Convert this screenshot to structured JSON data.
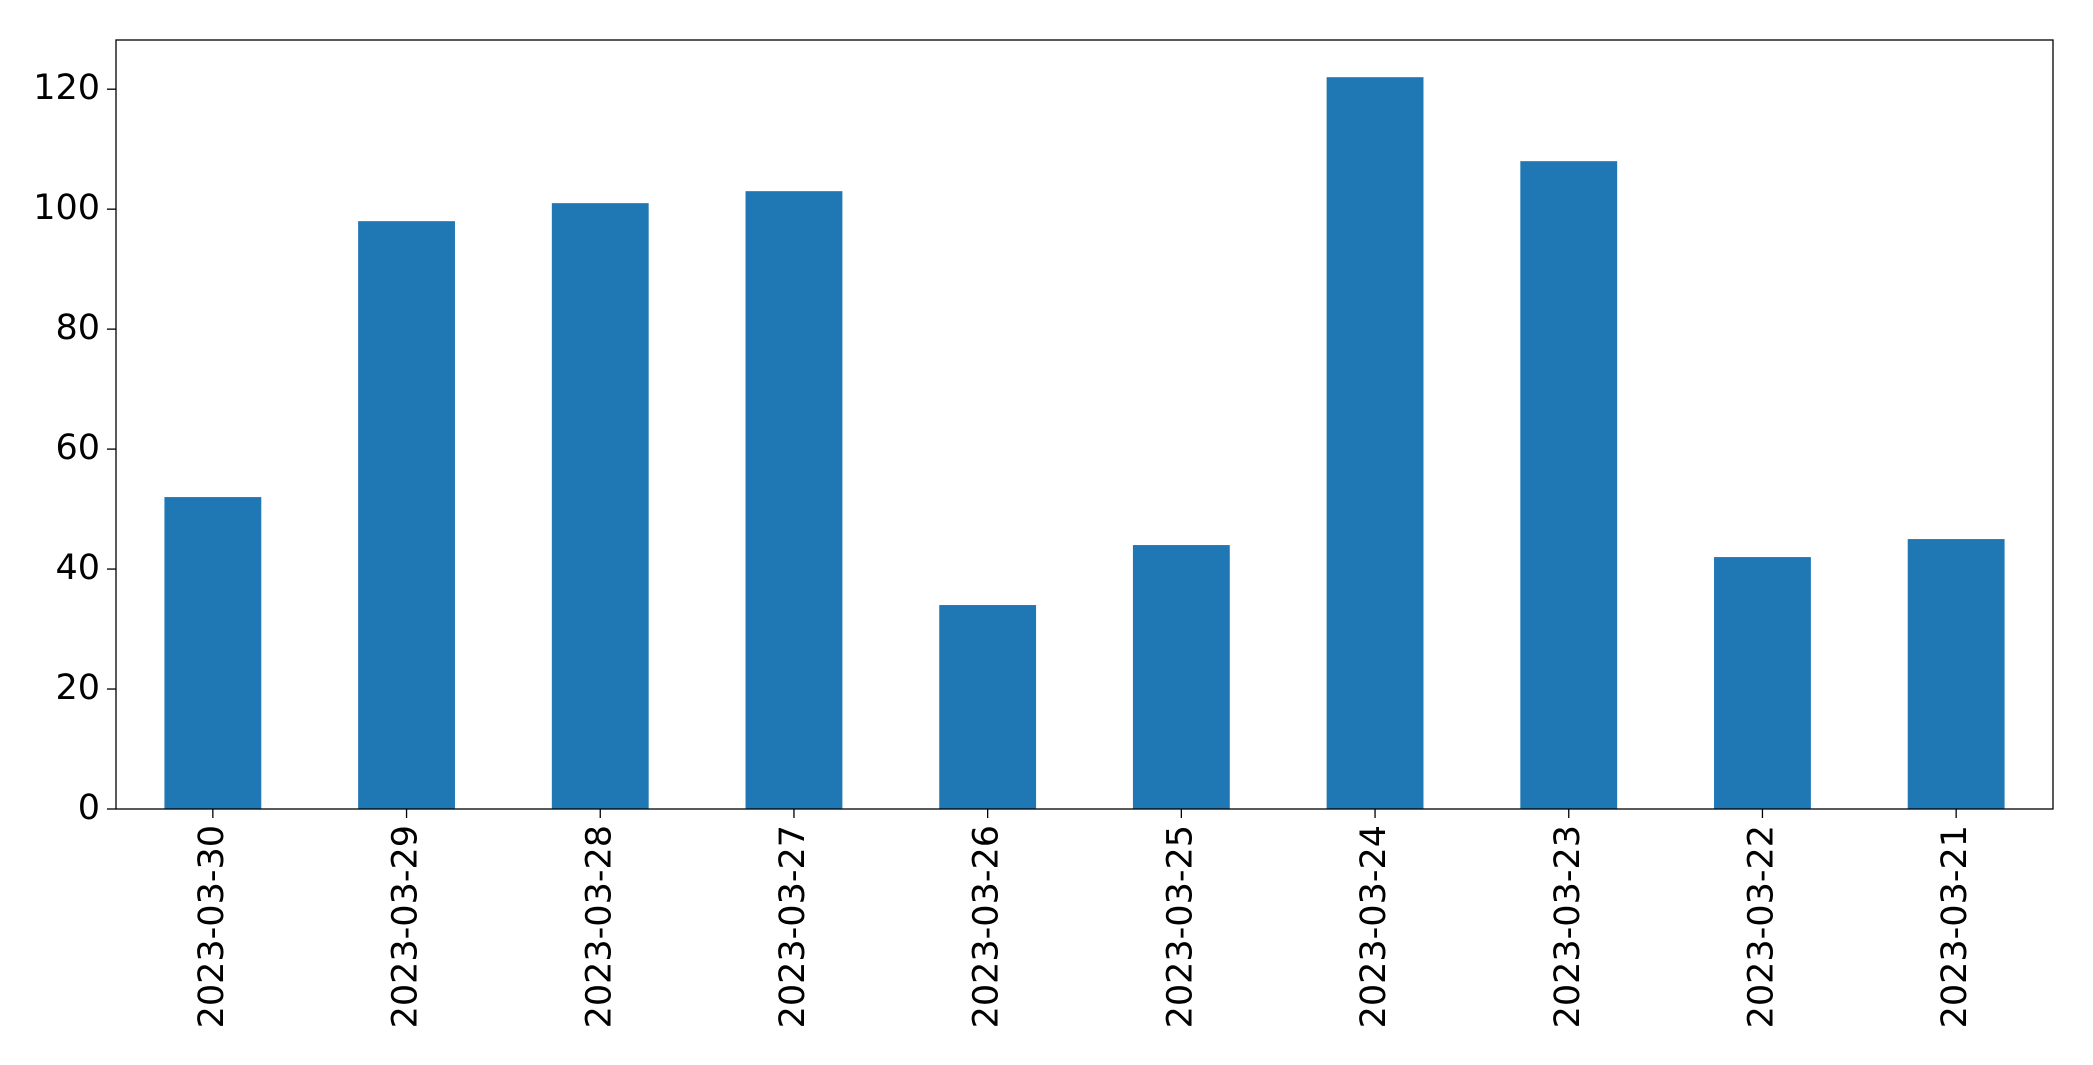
{
  "chart_data": {
    "type": "bar",
    "categories": [
      "2023-03-30",
      "2023-03-29",
      "2023-03-28",
      "2023-03-27",
      "2023-03-26",
      "2023-03-25",
      "2023-03-24",
      "2023-03-23",
      "2023-03-22",
      "2023-03-21"
    ],
    "values": [
      52,
      98,
      101,
      103,
      34,
      44,
      122,
      108,
      42,
      45
    ],
    "color": "#1f77b4",
    "ylim": [
      0,
      128.2
    ],
    "yticks": [
      0,
      20,
      40,
      60,
      80,
      100,
      120
    ],
    "grid": false
  }
}
